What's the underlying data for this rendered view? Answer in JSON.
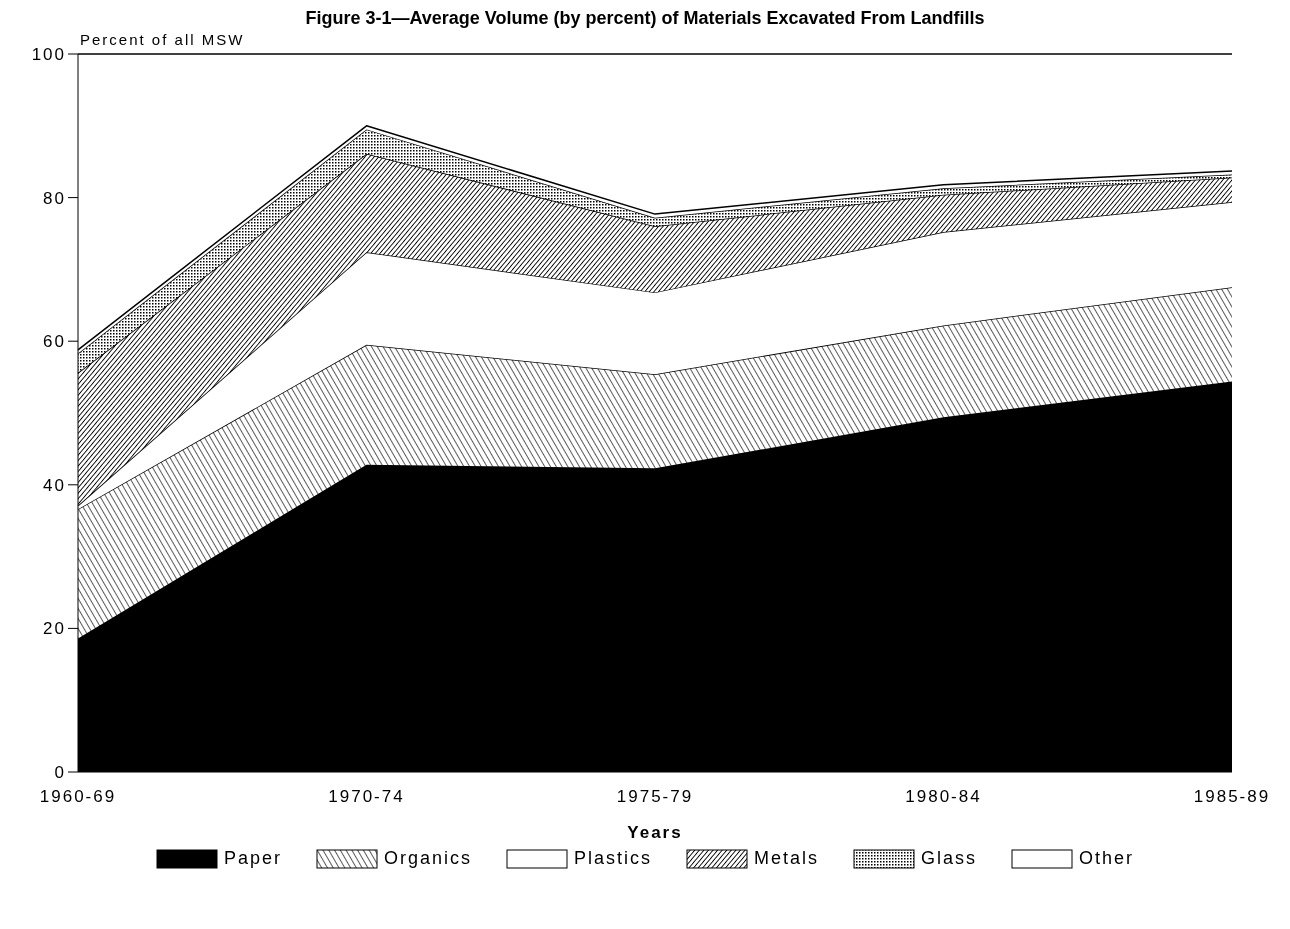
{
  "chart_data": {
    "type": "area",
    "stacked": true,
    "title": "Figure 3-1—Average Volume (by percent) of Materials Excavated From Landfills",
    "ylabel": "Percent of all MSW",
    "xlabel": "Years",
    "categories": [
      "1960-69",
      "1970-74",
      "1975-79",
      "1980-84",
      "1985-89"
    ],
    "series": [
      {
        "name": "Paper",
        "color": "#000000",
        "values": [
          18.6,
          42.8,
          42.3,
          49.4,
          54.4
        ]
      },
      {
        "name": "Organics",
        "color": "#000000",
        "values": [
          18,
          16.7,
          13.1,
          12.8,
          13.1
        ]
      },
      {
        "name": "Plastics",
        "color": "#000000",
        "values": [
          0.5,
          12.9,
          11.4,
          13,
          11.9
        ]
      },
      {
        "name": "Metals",
        "color": "#000000",
        "values": [
          18.5,
          13.7,
          9.2,
          5.2,
          3.4
        ]
      },
      {
        "name": "Glass",
        "color": "#000000",
        "values": [
          2.7,
          3.4,
          1.2,
          0.9,
          0.4
        ]
      },
      {
        "name": "Other",
        "color": "#000000",
        "values": [
          0.5,
          0.5,
          0.5,
          0.5,
          0.5
        ]
      }
    ],
    "ylim": [
      0,
      100
    ],
    "yticks": [
      0,
      20,
      40,
      60,
      80,
      100
    ],
    "grid": false,
    "legend": "bottom"
  }
}
